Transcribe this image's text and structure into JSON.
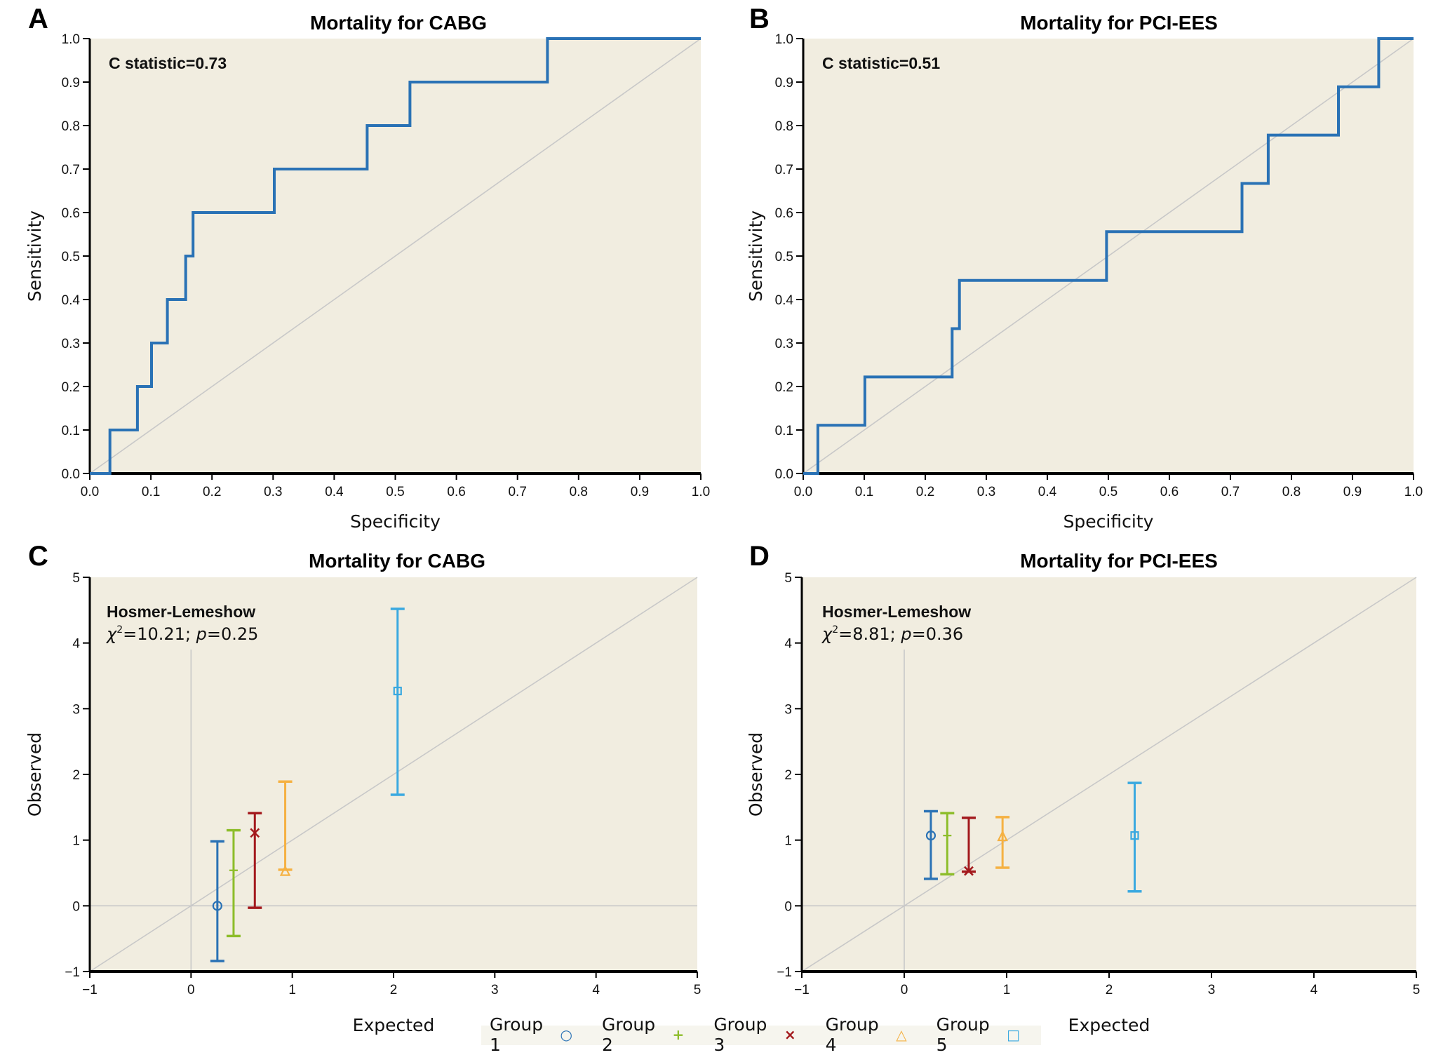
{
  "figure": {
    "background_color": "#f1ede0",
    "diagonal_color": "#c8c8c8",
    "roc_line_color": "#2a72b5"
  },
  "legend": {
    "items": [
      {
        "label": "Group 1",
        "symbol": "○",
        "marker": "circle",
        "color": "#2a72b5"
      },
      {
        "label": "Group 2",
        "symbol": "+",
        "marker": "plus",
        "color": "#8dbd2a"
      },
      {
        "label": "Group 3",
        "symbol": "×",
        "marker": "cross",
        "color": "#a3191d"
      },
      {
        "label": "Group 4",
        "symbol": "△",
        "marker": "triangle",
        "color": "#f5b142"
      },
      {
        "label": "Group 5",
        "symbol": "□",
        "marker": "square",
        "color": "#3aa9e0"
      }
    ]
  },
  "chart_data": [
    {
      "panel": "A",
      "type": "line",
      "title": "Mortality for CABG",
      "xlabel": "Specificity",
      "ylabel": "Sensitivity",
      "xlim": [
        0,
        1
      ],
      "ylim": [
        0,
        1
      ],
      "xticks": [
        "0.0",
        "0.1",
        "0.2",
        "0.3",
        "0.4",
        "0.5",
        "0.6",
        "0.7",
        "0.8",
        "0.9",
        "1.0"
      ],
      "yticks": [
        "0.0",
        "0.1",
        "0.2",
        "0.3",
        "0.4",
        "0.5",
        "0.6",
        "0.7",
        "0.8",
        "0.9",
        "1.0"
      ],
      "annotation": "C statistic=0.73",
      "reference_line": "diagonal y=x",
      "series": [
        {
          "name": "ROC",
          "step": true,
          "x": [
            0.0,
            0.033,
            0.033,
            0.078,
            0.078,
            0.101,
            0.101,
            0.127,
            0.127,
            0.157,
            0.157,
            0.169,
            0.169,
            0.302,
            0.302,
            0.454,
            0.454,
            0.524,
            0.524,
            0.749,
            0.749,
            1.0
          ],
          "y": [
            0.0,
            0.0,
            0.1,
            0.1,
            0.2,
            0.2,
            0.3,
            0.3,
            0.4,
            0.4,
            0.5,
            0.5,
            0.6,
            0.6,
            0.7,
            0.7,
            0.8,
            0.8,
            0.9,
            0.9,
            1.0,
            1.0
          ]
        }
      ]
    },
    {
      "panel": "B",
      "type": "line",
      "title": "Mortality for PCI-EES",
      "xlabel": "Specificity",
      "ylabel": "Sensitivity",
      "xlim": [
        0,
        1
      ],
      "ylim": [
        0,
        1
      ],
      "xticks": [
        "0.0",
        "0.1",
        "0.2",
        "0.3",
        "0.4",
        "0.5",
        "0.6",
        "0.7",
        "0.8",
        "0.9",
        "1.0"
      ],
      "yticks": [
        "0.0",
        "0.1",
        "0.2",
        "0.3",
        "0.4",
        "0.5",
        "0.6",
        "0.7",
        "0.8",
        "0.9",
        "1.0"
      ],
      "annotation": "C statistic=0.51",
      "reference_line": "diagonal y=x",
      "series": [
        {
          "name": "ROC",
          "step": true,
          "x": [
            0.0,
            0.024,
            0.024,
            0.101,
            0.101,
            0.244,
            0.244,
            0.256,
            0.256,
            0.497,
            0.497,
            0.719,
            0.719,
            0.762,
            0.762,
            0.877,
            0.877,
            0.943,
            0.943,
            1.0
          ],
          "y": [
            0.0,
            0.0,
            0.111,
            0.111,
            0.222,
            0.222,
            0.333,
            0.333,
            0.444,
            0.444,
            0.556,
            0.556,
            0.667,
            0.667,
            0.778,
            0.778,
            0.889,
            0.889,
            1.0,
            1.0
          ]
        }
      ]
    },
    {
      "panel": "C",
      "type": "scatter",
      "title": "Mortality for CABG",
      "xlabel": "Expected",
      "ylabel": "Observed",
      "xlim": [
        -1,
        5
      ],
      "ylim": [
        -1,
        5
      ],
      "xticks": [
        "−1",
        "0",
        "1",
        "2",
        "3",
        "4",
        "5"
      ],
      "yticks": [
        "−1",
        "0",
        "1",
        "2",
        "3",
        "4",
        "5"
      ],
      "annotation_title": "Hosmer-Lemeshow",
      "annotation_stat": {
        "chi_label": "χ",
        "sup": "2",
        "chi_value": "=10.21; ",
        "p_label": "p",
        "p_value": "=0.25"
      },
      "reference_lines": [
        "diagonal y=x",
        "x=0",
        "y=0"
      ],
      "series": [
        {
          "name": "Group 1",
          "x": 0.26,
          "y": 0.0,
          "lower": -0.84,
          "upper": 0.98
        },
        {
          "name": "Group 2",
          "x": 0.42,
          "y": 0.54,
          "lower": -0.46,
          "upper": 1.15
        },
        {
          "name": "Group 3",
          "x": 0.63,
          "y": 1.11,
          "lower": -0.03,
          "upper": 1.41
        },
        {
          "name": "Group 4",
          "x": 0.93,
          "y": 0.52,
          "lower": 0.55,
          "upper": 1.89
        },
        {
          "name": "Group 5",
          "x": 2.04,
          "y": 3.27,
          "lower": 1.69,
          "upper": 4.52
        }
      ]
    },
    {
      "panel": "D",
      "type": "scatter",
      "title": "Mortality for PCI-EES",
      "xlabel": "Expected",
      "ylabel": "Observed",
      "xlim": [
        -1,
        5
      ],
      "ylim": [
        -1,
        5
      ],
      "xticks": [
        "−1",
        "0",
        "1",
        "2",
        "3",
        "4",
        "5"
      ],
      "yticks": [
        "−1",
        "0",
        "1",
        "2",
        "3",
        "4",
        "5"
      ],
      "annotation_title": "Hosmer-Lemeshow",
      "annotation_stat": {
        "chi_label": "χ",
        "sup": "2",
        "chi_value": "=8.81; ",
        "p_label": "p",
        "p_value": "=0.36"
      },
      "reference_lines": [
        "diagonal y=x",
        "x=0",
        "y=0"
      ],
      "series": [
        {
          "name": "Group 1",
          "x": 0.26,
          "y": 1.07,
          "lower": 0.41,
          "upper": 1.44
        },
        {
          "name": "Group 2",
          "x": 0.42,
          "y": 1.07,
          "lower": 0.48,
          "upper": 1.41
        },
        {
          "name": "Group 3",
          "x": 0.63,
          "y": 0.53,
          "lower": 0.52,
          "upper": 1.34
        },
        {
          "name": "Group 4",
          "x": 0.96,
          "y": 1.05,
          "lower": 0.58,
          "upper": 1.35
        },
        {
          "name": "Group 5",
          "x": 2.25,
          "y": 1.07,
          "lower": 0.22,
          "upper": 1.87
        }
      ]
    }
  ]
}
